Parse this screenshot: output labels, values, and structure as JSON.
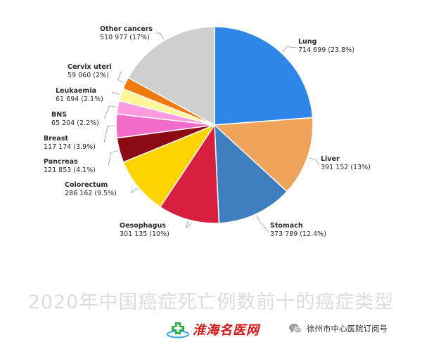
{
  "chart_data": {
    "type": "pie",
    "title": "",
    "series": [
      {
        "name": "Lung",
        "value_text": "714 699 (23.8%)",
        "value": 714699,
        "percent": 23.8,
        "color": "#2E86E8"
      },
      {
        "name": "Liver",
        "value_text": "391 152 (13%)",
        "value": 391152,
        "percent": 13.0,
        "color": "#F0A35A"
      },
      {
        "name": "Stomach",
        "value_text": "373 789 (12.4%)",
        "value": 373789,
        "percent": 12.4,
        "color": "#3F7FBF"
      },
      {
        "name": "Oesophagus",
        "value_text": "301 135 (10%)",
        "value": 301135,
        "percent": 10.0,
        "color": "#D81F3F"
      },
      {
        "name": "Colorectum",
        "value_text": "286 162 (9.5%)",
        "value": 286162,
        "percent": 9.5,
        "color": "#FFD400"
      },
      {
        "name": "Pancreas",
        "value_text": "121 853 (4.1%)",
        "value": 121853,
        "percent": 4.1,
        "color": "#8B0A14"
      },
      {
        "name": "Breast",
        "value_text": "117 174 (3.9%)",
        "value": 117174,
        "percent": 3.9,
        "color": "#F26BC9"
      },
      {
        "name": "BNS",
        "value_text": "65 204 (2.2%)",
        "value": 65204,
        "percent": 2.2,
        "color": "#FF99E0"
      },
      {
        "name": "Leukaemia",
        "value_text": "61 694 (2.1%)",
        "value": 61694,
        "percent": 2.1,
        "color": "#FFF59A"
      },
      {
        "name": "Cervix uteri",
        "value_text": "59 060 (2%)",
        "value": 59060,
        "percent": 2.0,
        "color": "#F07A0F"
      },
      {
        "name": "Other cancers",
        "value_text": "510 977 (17%)",
        "value": 510977,
        "percent": 17.0,
        "color": "#CFCFCF"
      }
    ]
  },
  "caption": "2020年中国癌症死亡例数前十的癌症类型",
  "footer": {
    "brand_name": "淮海名医网",
    "brand_logo_icon": "medical-cross-logo-icon",
    "wechat_icon": "wechat-icon",
    "wechat_account": "徐州市中心医院订阅号"
  }
}
